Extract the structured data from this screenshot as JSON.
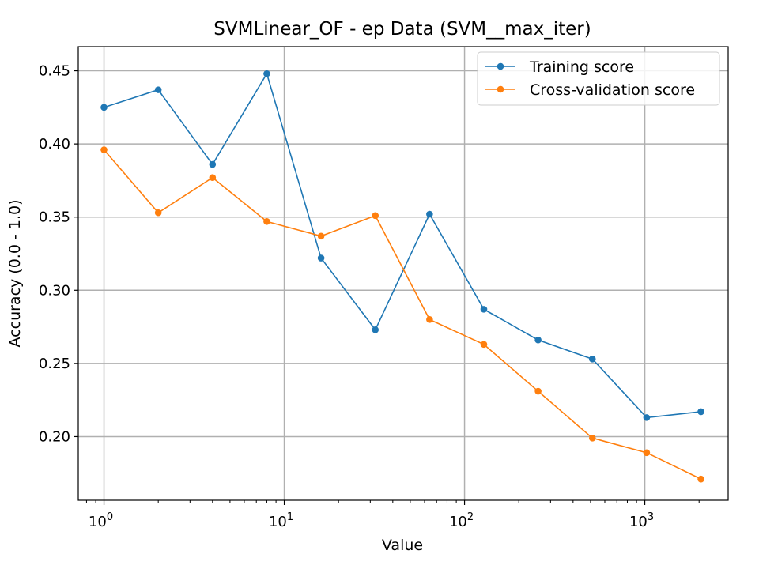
{
  "chart_data": {
    "type": "line",
    "title": "SVMLinear_OF - ep Data (SVM__max_iter)",
    "xlabel": "Value",
    "ylabel": "Accuracy (0.0 - 1.0)",
    "xscale": "log",
    "xlim": [
      0.72,
      2900
    ],
    "ylim": [
      0.1565,
      0.4665
    ],
    "grid": true,
    "legend_position": "top-right",
    "x": [
      1,
      2,
      4,
      8,
      16,
      32,
      64,
      128,
      256,
      512,
      1024,
      2048
    ],
    "x_ticks": [
      {
        "value": 1,
        "base": "10",
        "exp": "0"
      },
      {
        "value": 10,
        "base": "10",
        "exp": "1"
      },
      {
        "value": 100,
        "base": "10",
        "exp": "2"
      },
      {
        "value": 1000,
        "base": "10",
        "exp": "3"
      }
    ],
    "y_ticks": [
      {
        "value": 0.2,
        "label": "0.20"
      },
      {
        "value": 0.25,
        "label": "0.25"
      },
      {
        "value": 0.3,
        "label": "0.30"
      },
      {
        "value": 0.35,
        "label": "0.35"
      },
      {
        "value": 0.4,
        "label": "0.40"
      },
      {
        "value": 0.45,
        "label": "0.45"
      }
    ],
    "series": [
      {
        "name": "Training score",
        "color": "#1f77b4",
        "values": [
          0.425,
          0.437,
          0.386,
          0.448,
          0.322,
          0.273,
          0.352,
          0.287,
          0.266,
          0.253,
          0.213,
          0.217
        ]
      },
      {
        "name": "Cross-validation score",
        "color": "#ff7f0e",
        "values": [
          0.396,
          0.353,
          0.377,
          0.347,
          0.337,
          0.351,
          0.28,
          0.263,
          0.231,
          0.199,
          0.189,
          0.171
        ]
      }
    ]
  }
}
